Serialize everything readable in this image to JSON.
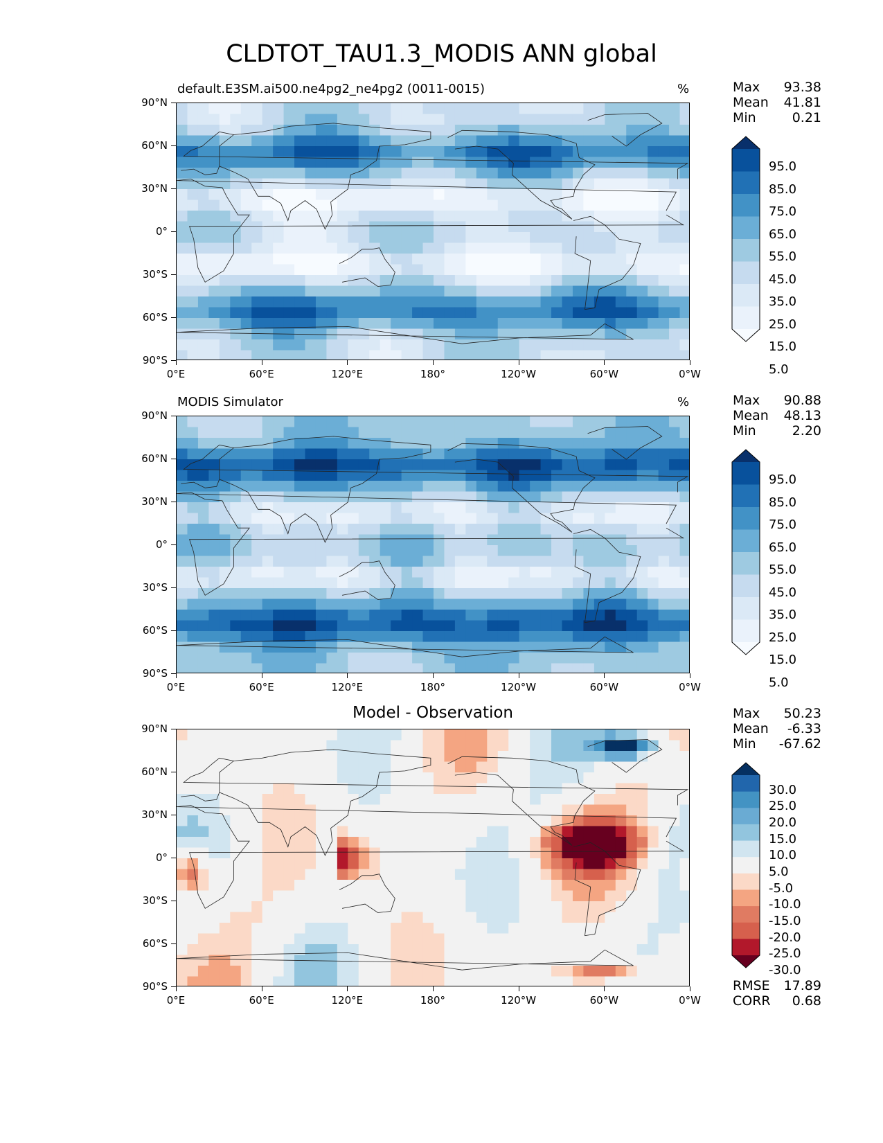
{
  "title": "CLDTOT_TAU1.3_MODIS ANN global",
  "panels": [
    {
      "id": "test",
      "title_left": "default.E3SM.ai500.ne4pg2_ne4pg2 (0011-0015)",
      "title_right": "%",
      "title_center": "",
      "stats": [
        {
          "key": "Max",
          "value": "93.38"
        },
        {
          "key": "Mean",
          "value": "41.81"
        },
        {
          "key": "Min",
          "value": "0.21"
        }
      ],
      "colorbar": {
        "labels": [
          "95.0",
          "85.0",
          "75.0",
          "65.0",
          "55.0",
          "45.0",
          "35.0",
          "25.0",
          "15.0",
          "5.0"
        ],
        "colors": [
          "#08306b",
          "#08519c",
          "#2171b5",
          "#4292c6",
          "#6baed6",
          "#9ecae1",
          "#c6dbef",
          "#dbe9f6",
          "#eaf2fb",
          "#f7fbff"
        ]
      },
      "footer_stats": []
    },
    {
      "id": "reference",
      "title_left": "MODIS Simulator",
      "title_right": "%",
      "title_center": "",
      "stats": [
        {
          "key": "Max",
          "value": "90.88"
        },
        {
          "key": "Mean",
          "value": "48.13"
        },
        {
          "key": "Min",
          "value": "2.20"
        }
      ],
      "colorbar": {
        "labels": [
          "95.0",
          "85.0",
          "75.0",
          "65.0",
          "55.0",
          "45.0",
          "35.0",
          "25.0",
          "15.0",
          "5.0"
        ],
        "colors": [
          "#08306b",
          "#08519c",
          "#2171b5",
          "#4292c6",
          "#6baed6",
          "#9ecae1",
          "#c6dbef",
          "#dbe9f6",
          "#eaf2fb",
          "#f7fbff"
        ]
      },
      "footer_stats": []
    },
    {
      "id": "difference",
      "title_left": "",
      "title_right": "",
      "title_center": "Model - Observation",
      "stats": [
        {
          "key": "Max",
          "value": "50.23"
        },
        {
          "key": "Mean",
          "value": "-6.33"
        },
        {
          "key": "Min",
          "value": "-67.62"
        }
      ],
      "colorbar": {
        "labels": [
          "30.0",
          "25.0",
          "20.0",
          "15.0",
          "10.0",
          "5.0",
          "-5.0",
          "-10.0",
          "-15.0",
          "-20.0",
          "-25.0",
          "-30.0"
        ],
        "colors": [
          "#053061",
          "#2166ac",
          "#4393c3",
          "#6aabd3",
          "#92c5de",
          "#d1e5f0",
          "#f2f2f2",
          "#fbd9c7",
          "#f4a582",
          "#e07b62",
          "#d6604d",
          "#b2182b",
          "#67001f"
        ]
      },
      "footer_stats": [
        {
          "key": "RMSE",
          "value": "17.89"
        },
        {
          "key": "CORR",
          "value": "0.68"
        }
      ]
    }
  ],
  "axes": {
    "lat_ticks": [
      "90°N",
      "60°N",
      "30°N",
      "0°",
      "30°S",
      "60°S",
      "90°S"
    ],
    "lon_ticks": [
      "0°E",
      "60°E",
      "120°E",
      "180°",
      "120°W",
      "60°W",
      "0°W"
    ]
  }
}
